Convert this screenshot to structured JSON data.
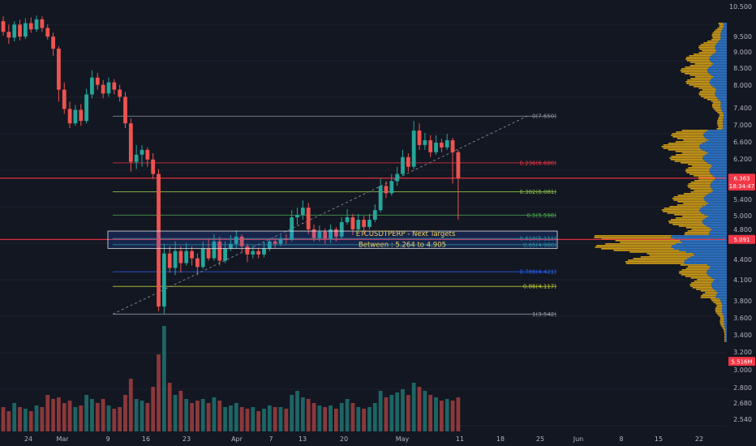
{
  "chart_data": {
    "type": "candlestick",
    "symbol": "ETCUSDTPERP",
    "annotation": {
      "title": "ETCUSDTPERP - Next Targets",
      "subtitle": "Between :  5.264  to  4.905",
      "high": 5.264,
      "low": 4.905
    },
    "price_ylim": [
      3.3,
      10.5
    ],
    "price_axis_ticks": [
      "10.500",
      "9.500",
      "9.000",
      "8.500",
      "8.000",
      "7.400",
      "7.000",
      "6.600",
      "6.200",
      "5.800",
      "5.400",
      "5.000",
      "4.800",
      "4.400",
      "4.100",
      "3.800",
      "3.600",
      "3.400",
      "3.200",
      "3.000",
      "2.800",
      "2.680",
      "2.540"
    ],
    "x_axis_labels": [
      "24",
      "Mar",
      "9",
      "16",
      "23",
      "Apr",
      "7",
      "13",
      "20",
      "May",
      "11",
      "18",
      "25",
      "Jun",
      "8",
      "15",
      "22"
    ],
    "fibonacci": [
      {
        "label": "0(7.650)",
        "price": 7.65,
        "color": "#9598a1"
      },
      {
        "label": "0.236(6.680)",
        "price": 6.68,
        "color": "#f23645"
      },
      {
        "label": "0.382(6.081)",
        "price": 6.081,
        "color": "#8bc34a"
      },
      {
        "label": "0.5(5.596)",
        "price": 5.596,
        "color": "#4caf50"
      },
      {
        "label": "0.618(5.111)",
        "price": 5.111,
        "color": "#26a69a"
      },
      {
        "label": "0.65(4.980)",
        "price": 4.98,
        "color": "#26a69a"
      },
      {
        "label": "0.786(4.421)",
        "price": 4.421,
        "color": "#2962ff"
      },
      {
        "label": "0.86(4.117)",
        "price": 4.117,
        "color": "#c0ca33"
      },
      {
        "label": "1(3.542)",
        "price": 3.542,
        "color": "#9598a1"
      }
    ],
    "price_tags": [
      {
        "label": "6.363",
        "price": 6.363,
        "color": "#f23645"
      },
      {
        "label": "18:34:47",
        "price": 6.2,
        "color": "#f23645"
      },
      {
        "label": "5.091",
        "price": 5.091,
        "color": "#f23645"
      },
      {
        "label": "5.516M",
        "price": 2.56,
        "color": "#f23645"
      }
    ],
    "horizontal_lines": [
      {
        "price": 6.363,
        "color": "#f23645"
      },
      {
        "price": 5.091,
        "color": "#f23645"
      }
    ],
    "candles": [
      [
        9.62,
        9.4,
        9.72,
        9.32
      ],
      [
        9.4,
        9.28,
        9.55,
        9.15
      ],
      [
        9.28,
        9.55,
        9.62,
        9.2
      ],
      [
        9.55,
        9.3,
        9.65,
        9.22
      ],
      [
        9.3,
        9.58,
        9.68,
        9.25
      ],
      [
        9.58,
        9.45,
        9.7,
        9.38
      ],
      [
        9.45,
        9.66,
        9.74,
        9.4
      ],
      [
        9.66,
        9.48,
        9.72,
        9.4
      ],
      [
        9.48,
        9.3,
        9.55,
        9.24
      ],
      [
        9.3,
        9.05,
        9.38,
        8.9
      ],
      [
        9.05,
        8.2,
        9.1,
        7.95
      ],
      [
        8.2,
        7.8,
        8.35,
        7.7
      ],
      [
        7.8,
        7.5,
        7.95,
        7.4
      ],
      [
        7.5,
        7.78,
        7.88,
        7.45
      ],
      [
        7.78,
        7.55,
        7.9,
        7.45
      ],
      [
        7.55,
        8.1,
        8.22,
        7.5
      ],
      [
        8.1,
        8.45,
        8.6,
        8.02
      ],
      [
        8.45,
        8.3,
        8.55,
        8.2
      ],
      [
        8.3,
        8.12,
        8.4,
        8.02
      ],
      [
        8.12,
        8.35,
        8.45,
        8.05
      ],
      [
        8.35,
        8.2,
        8.42,
        8.1
      ],
      [
        8.2,
        8.05,
        8.3,
        7.95
      ],
      [
        8.05,
        7.5,
        8.15,
        7.4
      ],
      [
        7.5,
        6.7,
        7.6,
        6.5
      ],
      [
        6.7,
        6.85,
        7.05,
        6.55
      ],
      [
        6.85,
        6.95,
        7.05,
        6.6
      ],
      [
        6.95,
        6.75,
        7.0,
        6.6
      ],
      [
        6.75,
        6.45,
        6.88,
        6.35
      ],
      [
        6.45,
        3.7,
        6.55,
        3.6
      ],
      [
        3.7,
        4.8,
        5.0,
        3.55
      ],
      [
        4.8,
        4.5,
        4.95,
        4.4
      ],
      [
        4.5,
        4.85,
        5.05,
        4.35
      ],
      [
        4.85,
        4.6,
        4.95,
        4.4
      ],
      [
        4.6,
        4.85,
        5.02,
        4.55
      ],
      [
        4.85,
        4.7,
        4.95,
        4.55
      ],
      [
        4.7,
        4.52,
        4.8,
        4.35
      ],
      [
        4.52,
        4.9,
        5.05,
        4.48
      ],
      [
        4.9,
        4.7,
        5.1,
        4.65
      ],
      [
        4.7,
        5.05,
        5.2,
        4.65
      ],
      [
        5.05,
        4.65,
        5.15,
        4.55
      ],
      [
        4.65,
        4.9,
        5.05,
        4.6
      ],
      [
        4.9,
        5.0,
        5.18,
        4.85
      ],
      [
        5.0,
        5.15,
        5.28,
        4.9
      ],
      [
        5.15,
        4.95,
        5.2,
        4.82
      ],
      [
        4.95,
        4.78,
        5.0,
        4.62
      ],
      [
        4.78,
        4.85,
        4.95,
        4.7
      ],
      [
        4.85,
        4.78,
        4.92,
        4.7
      ],
      [
        4.78,
        4.9,
        5.05,
        4.72
      ],
      [
        4.9,
        5.05,
        5.12,
        4.85
      ],
      [
        5.05,
        5.0,
        5.12,
        4.92
      ],
      [
        5.0,
        5.1,
        5.18,
        4.95
      ],
      [
        5.1,
        5.08,
        5.2,
        5.0
      ],
      [
        5.08,
        5.55,
        5.7,
        5.05
      ],
      [
        5.55,
        5.6,
        5.75,
        5.4
      ],
      [
        5.6,
        5.75,
        5.9,
        5.5
      ],
      [
        5.75,
        5.3,
        5.85,
        5.2
      ],
      [
        5.3,
        5.12,
        5.4,
        5.05
      ],
      [
        5.12,
        5.25,
        5.38,
        5.05
      ],
      [
        5.25,
        5.1,
        5.32,
        5.0
      ],
      [
        5.1,
        5.3,
        5.4,
        5.02
      ],
      [
        5.3,
        5.15,
        5.35,
        5.05
      ],
      [
        5.15,
        5.45,
        5.55,
        5.1
      ],
      [
        5.45,
        5.55,
        5.72,
        5.4
      ],
      [
        5.55,
        5.3,
        5.62,
        5.18
      ],
      [
        5.3,
        5.5,
        5.62,
        5.25
      ],
      [
        5.5,
        5.35,
        5.58,
        5.2
      ],
      [
        5.35,
        5.5,
        5.62,
        5.3
      ],
      [
        5.5,
        5.7,
        5.82,
        5.45
      ],
      [
        5.7,
        6.2,
        6.35,
        5.65
      ],
      [
        6.2,
        6.05,
        6.3,
        5.95
      ],
      [
        6.05,
        6.3,
        6.45,
        6.0
      ],
      [
        6.3,
        6.45,
        6.6,
        6.2
      ],
      [
        6.45,
        6.8,
        6.95,
        6.4
      ],
      [
        6.8,
        6.6,
        6.88,
        6.5
      ],
      [
        6.6,
        7.35,
        7.55,
        6.55
      ],
      [
        7.35,
        7.05,
        7.5,
        6.95
      ],
      [
        7.05,
        7.15,
        7.3,
        6.95
      ],
      [
        7.15,
        6.9,
        7.25,
        6.8
      ],
      [
        6.9,
        7.1,
        7.25,
        6.85
      ],
      [
        7.1,
        7.0,
        7.18,
        6.9
      ],
      [
        7.0,
        7.15,
        7.28,
        6.95
      ],
      [
        7.15,
        6.9,
        7.2,
        6.25
      ],
      [
        6.9,
        6.36,
        6.95,
        5.5
      ]
    ],
    "volume": [
      0.3,
      0.25,
      0.35,
      0.3,
      0.28,
      0.25,
      0.32,
      0.3,
      0.45,
      0.4,
      0.42,
      0.35,
      0.38,
      0.3,
      0.32,
      0.45,
      0.4,
      0.35,
      0.4,
      0.32,
      0.28,
      0.3,
      0.45,
      0.65,
      0.4,
      0.38,
      0.35,
      0.55,
      0.95,
      1.3,
      0.6,
      0.45,
      0.5,
      0.4,
      0.35,
      0.38,
      0.4,
      0.35,
      0.42,
      0.38,
      0.3,
      0.32,
      0.35,
      0.3,
      0.28,
      0.3,
      0.25,
      0.28,
      0.32,
      0.3,
      0.3,
      0.28,
      0.45,
      0.5,
      0.42,
      0.4,
      0.35,
      0.32,
      0.3,
      0.32,
      0.28,
      0.35,
      0.4,
      0.35,
      0.3,
      0.28,
      0.3,
      0.35,
      0.5,
      0.42,
      0.45,
      0.48,
      0.52,
      0.45,
      0.6,
      0.55,
      0.5,
      0.45,
      0.42,
      0.38,
      0.4,
      0.38,
      0.42
    ]
  }
}
